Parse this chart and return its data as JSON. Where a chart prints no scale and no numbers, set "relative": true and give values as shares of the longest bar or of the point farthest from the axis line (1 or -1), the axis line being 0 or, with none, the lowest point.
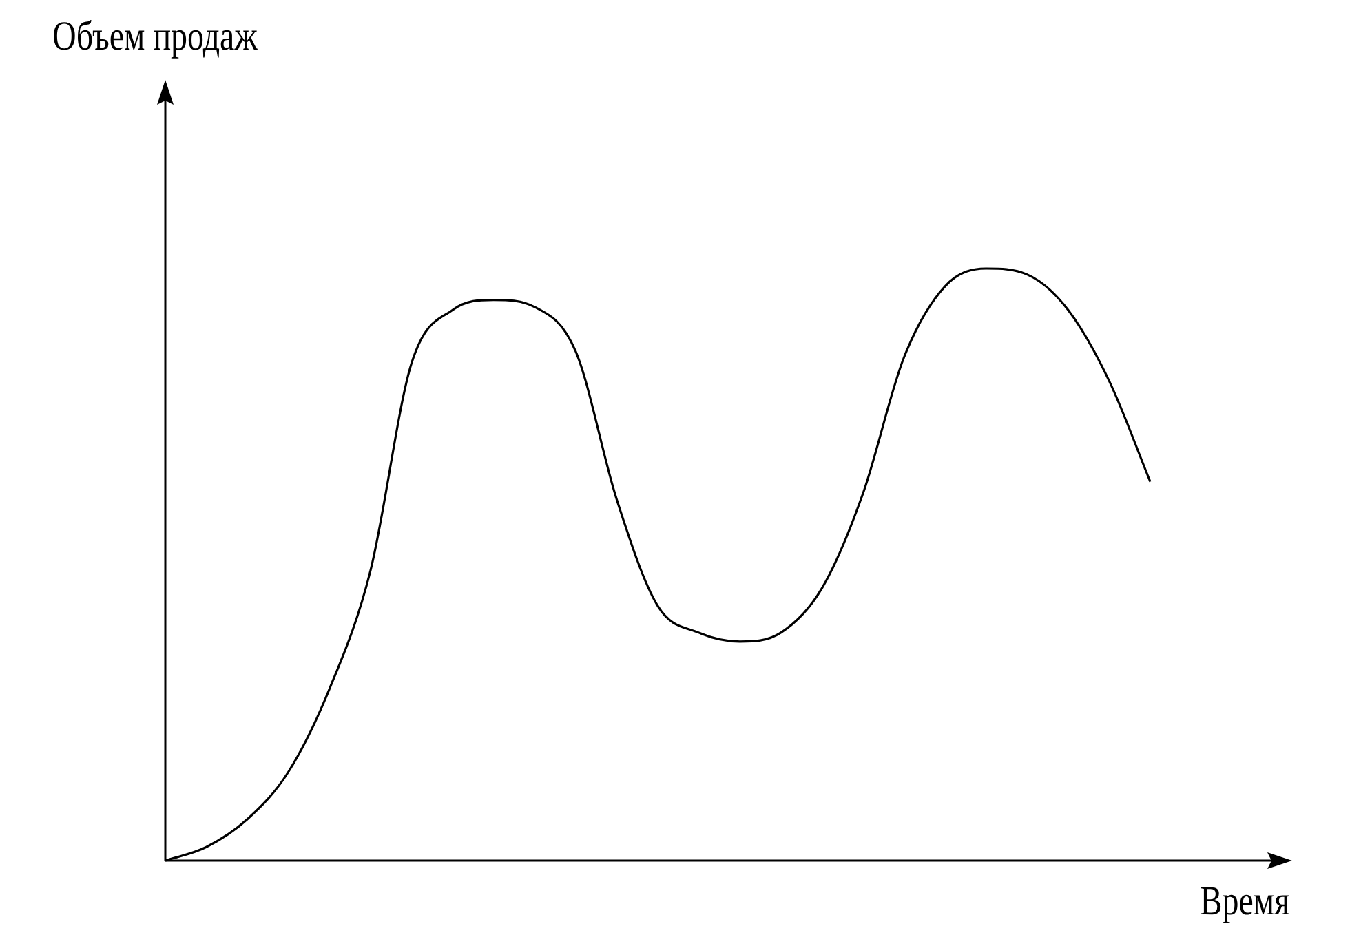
{
  "chart_data": {
    "type": "line",
    "relative": true,
    "annotations": [
      "Объем продаж"
    ],
    "xlabel": "Время",
    "marker": "none",
    "color": "#000000",
    "categories": [
      null,
      null,
      null,
      null,
      null,
      null,
      null,
      null,
      null,
      null,
      null,
      null,
      null,
      null,
      null,
      null,
      null,
      null,
      null,
      null,
      null,
      null,
      null,
      null,
      null
    ],
    "values": [
      0,
      0.023,
      0.07,
      0.15,
      0.29,
      0.49,
      0.84,
      0.93,
      0.947,
      0.935,
      0.86,
      0.61,
      0.43,
      0.385,
      0.37,
      0.385,
      0.46,
      0.62,
      0.85,
      0.97,
      1,
      0.99,
      0.93,
      0.81,
      0.64
    ]
  }
}
